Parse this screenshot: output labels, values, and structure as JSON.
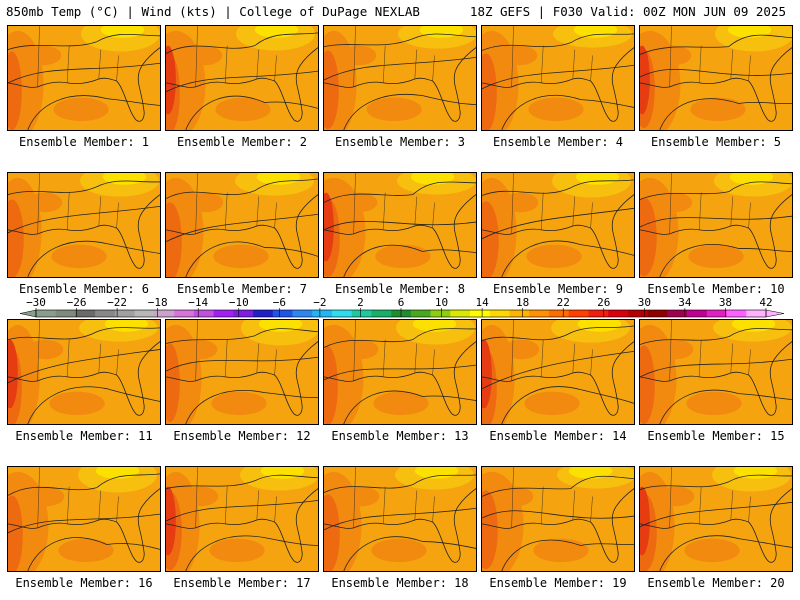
{
  "header": {
    "left": "850mb Temp (°C) | Wind (kts) | College of DuPage NEXLAB",
    "right": "18Z GEFS | F030 Valid: 00Z MON JUN 09 2025"
  },
  "panel_label_prefix": "Ensemble Member:",
  "members": [
    {
      "label": "Ensemble Member: 1"
    },
    {
      "label": "Ensemble Member: 2"
    },
    {
      "label": "Ensemble Member: 3"
    },
    {
      "label": "Ensemble Member: 4"
    },
    {
      "label": "Ensemble Member: 5"
    },
    {
      "label": "Ensemble Member: 6"
    },
    {
      "label": "Ensemble Member: 7"
    },
    {
      "label": "Ensemble Member: 8"
    },
    {
      "label": "Ensemble Member: 9"
    },
    {
      "label": "Ensemble Member: 10"
    },
    {
      "label": "Ensemble Member: 11"
    },
    {
      "label": "Ensemble Member: 12"
    },
    {
      "label": "Ensemble Member: 13"
    },
    {
      "label": "Ensemble Member: 14"
    },
    {
      "label": "Ensemble Member: 15"
    },
    {
      "label": "Ensemble Member: 16"
    },
    {
      "label": "Ensemble Member: 17"
    },
    {
      "label": "Ensemble Member: 18"
    },
    {
      "label": "Ensemble Member: 19"
    },
    {
      "label": "Ensemble Member: 20"
    }
  ],
  "colorbar": {
    "labels": [
      "−30",
      "−26",
      "−22",
      "−18",
      "−14",
      "−10",
      "−6",
      "−2",
      "2",
      "6",
      "10",
      "14",
      "18",
      "22",
      "26",
      "30",
      "34",
      "38",
      "42"
    ],
    "colors": [
      "#8c9c8c",
      "#7d8a7d",
      "#6a6a6a",
      "#888888",
      "#a0a0a0",
      "#b7b7b7",
      "#c9a3c9",
      "#d873d8",
      "#c050e0",
      "#a020f0",
      "#7b1ee0",
      "#2020c8",
      "#1f54e6",
      "#2f86f0",
      "#25b4f2",
      "#30dcec",
      "#20c8a0",
      "#18b068",
      "#208c30",
      "#48a820",
      "#90cc10",
      "#d8e800",
      "#ffff00",
      "#ffd800",
      "#ffb400",
      "#ff9000",
      "#ff6c00",
      "#ff4000",
      "#f02010",
      "#d80010",
      "#b40000",
      "#900000",
      "#a00050",
      "#c00090",
      "#e020c0",
      "#ff60ff",
      "#ffb0ff"
    ],
    "unit": "°C"
  },
  "map_colors": {
    "base": "#f5a40f",
    "warm1": "#f28a10",
    "warm2": "#ed6a10",
    "hot": "#e63c12",
    "cool": "#f8c00e",
    "coolest": "#fbe000",
    "outline": "#222222"
  }
}
